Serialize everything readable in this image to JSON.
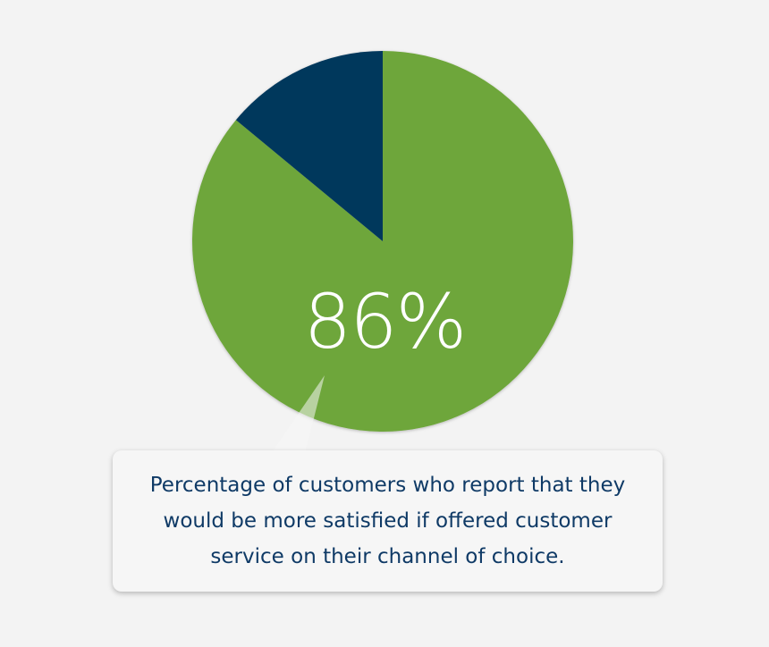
{
  "chart_data": {
    "type": "pie",
    "categories": [
      "",
      ""
    ],
    "values": [
      86,
      14
    ],
    "colors": [
      "#6ea63a",
      "#04375c"
    ],
    "center_label": "86%",
    "title": "",
    "annotation": "Percentage of customers who report that they would be more satisfied if offered customer service on their channel of choice."
  },
  "colors": {
    "background": "#f3f3f3",
    "callout_background": "#f6f6f6",
    "callout_text": "#0f3a66",
    "label_text": "#ffffff"
  }
}
